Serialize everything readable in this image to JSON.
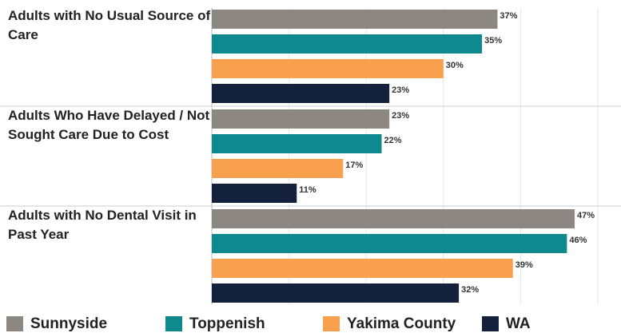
{
  "chart_data": {
    "type": "hbar",
    "categories": [
      "Adults with No Usual Source of Care",
      "Adults Who Have Delayed / Not Sought Care Due to Cost",
      "Adults with No Dental Visit in Past Year"
    ],
    "series": [
      {
        "name": "Sunnyside",
        "color": "#8c8780",
        "values": [
          37,
          23,
          47
        ],
        "value_labels": [
          "37%",
          "23%",
          "47%"
        ]
      },
      {
        "name": "Toppenish",
        "color": "#0e8a8f",
        "values": [
          35,
          22,
          46
        ],
        "value_labels": [
          "35%",
          "22%",
          "46%"
        ]
      },
      {
        "name": "Yakima County",
        "color": "#f9a04e",
        "values": [
          30,
          17,
          39
        ],
        "value_labels": [
          "30%",
          "17%",
          "39%"
        ]
      },
      {
        "name": "WA",
        "color": "#14213d",
        "values": [
          23,
          11,
          32
        ],
        "value_labels": [
          "23%",
          "11%",
          "32%"
        ]
      }
    ],
    "xlim": [
      0,
      50
    ],
    "xticks": [
      0,
      10,
      20,
      30,
      40,
      50
    ],
    "grid": true,
    "legend": "bottom"
  }
}
